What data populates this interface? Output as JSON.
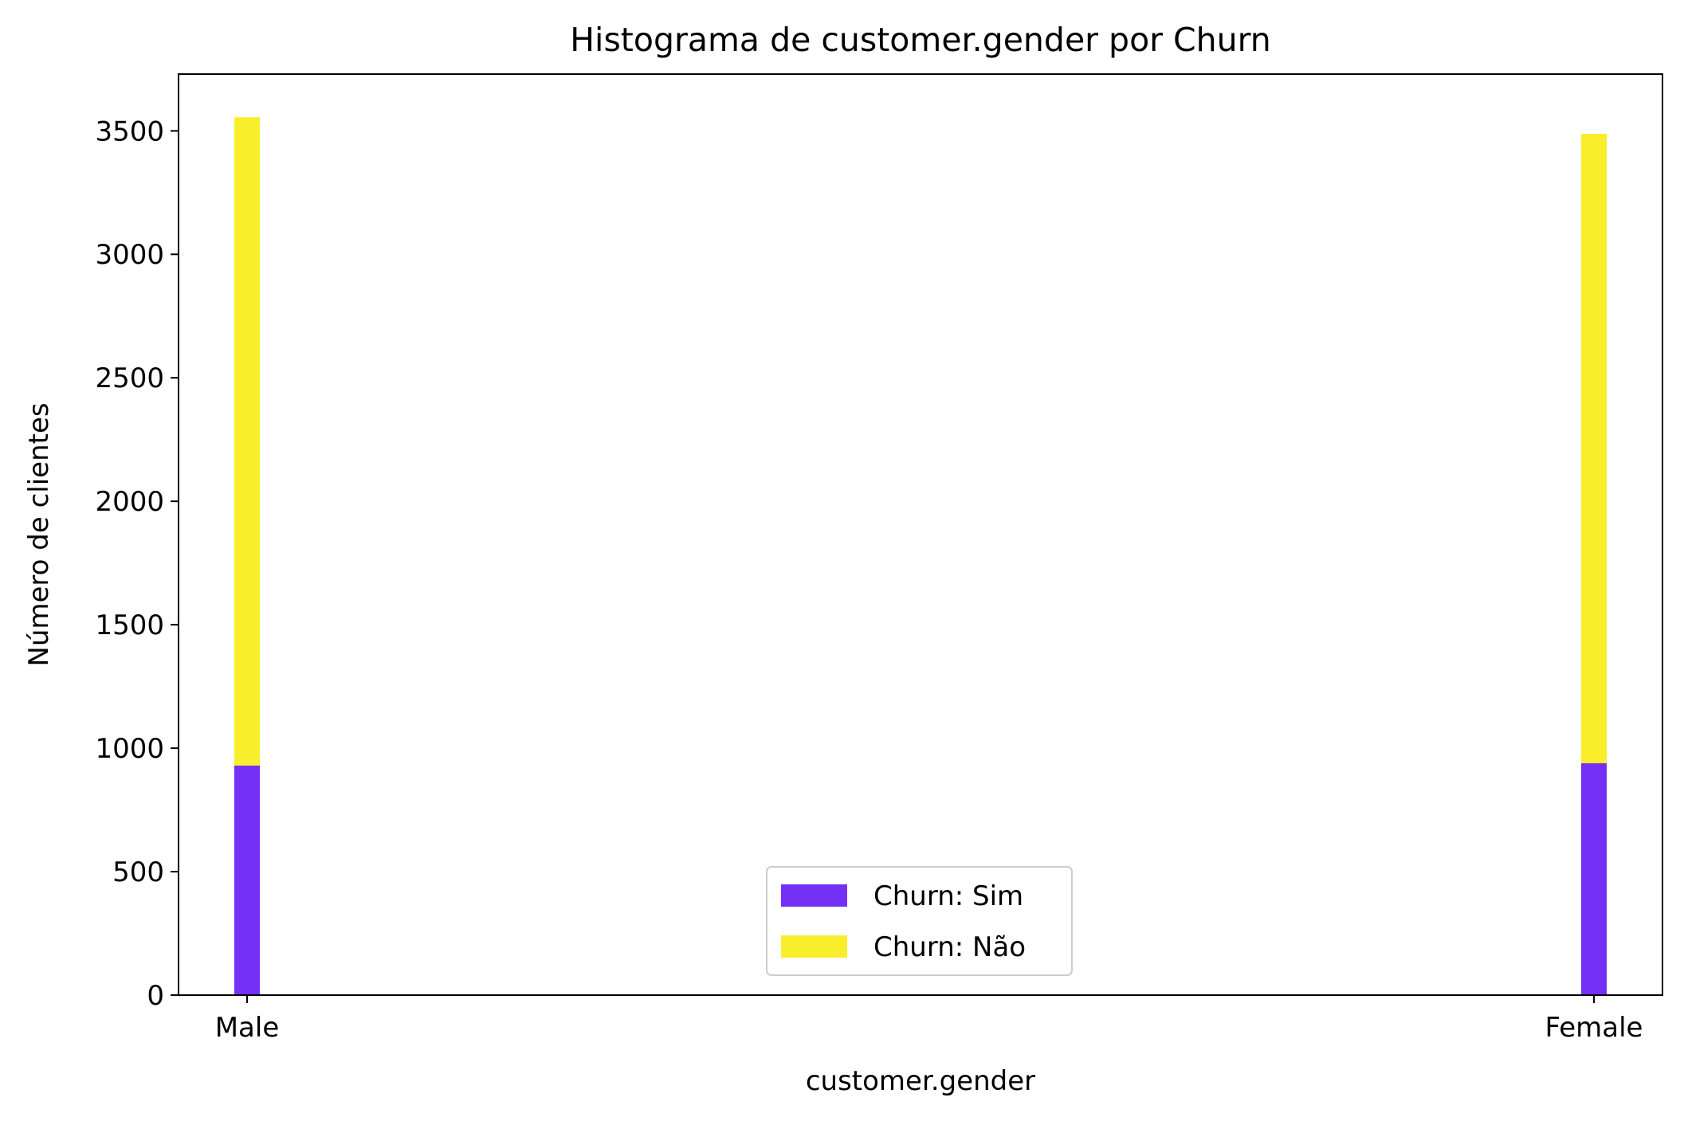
{
  "chart_data": {
    "type": "bar",
    "stacked": true,
    "title": "Histograma de customer.gender por Churn",
    "xlabel": "customer.gender",
    "ylabel": "Número de clientes",
    "categories": [
      "Male",
      "Female"
    ],
    "series": [
      {
        "name": "Churn: Sim",
        "values": [
          930,
          939
        ],
        "color": "#7530F6"
      },
      {
        "name": "Churn: Não",
        "values": [
          2625,
          2549
        ],
        "color": "#F9EE2B"
      }
    ],
    "ylim": [
      0,
      3730
    ],
    "yticks": [
      0,
      500,
      1000,
      1500,
      2000,
      2500,
      3000,
      3500
    ],
    "grid": false,
    "legend_position": "lower-center"
  }
}
